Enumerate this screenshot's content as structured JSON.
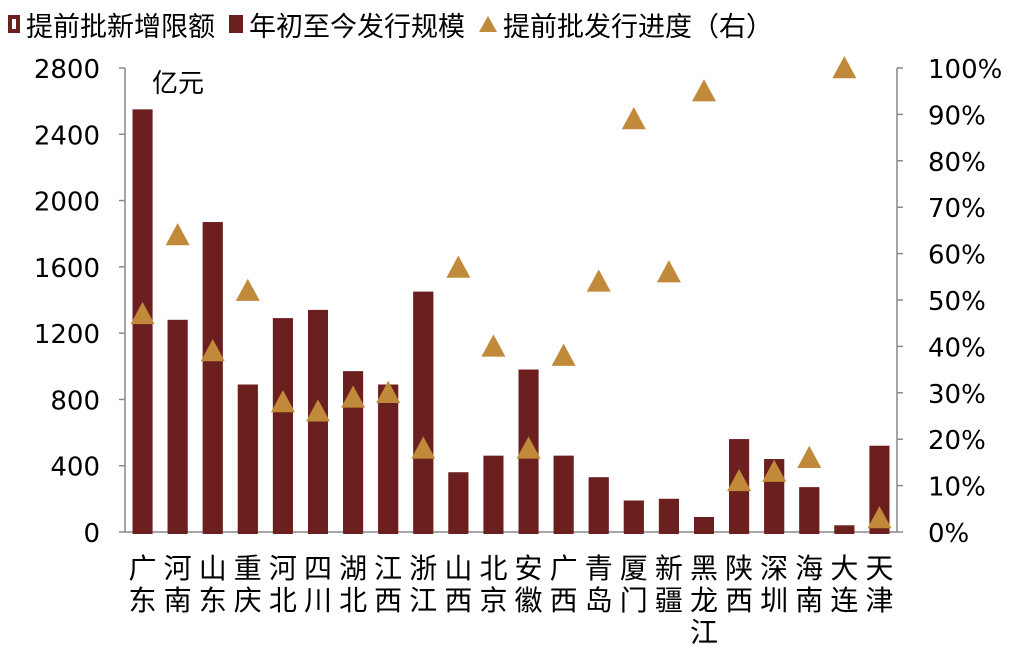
{
  "legend": {
    "quota": "提前批新增限额",
    "issued": "年初至今发行规模",
    "progress": "提前批发行进度（右）"
  },
  "colors": {
    "bar": "#6b1f1f",
    "marker": "#c18a3a"
  },
  "chart_data": {
    "type": "bar",
    "unit_label": "亿元",
    "categories": [
      "广东",
      "河南",
      "山东",
      "重庆",
      "河北",
      "四川",
      "湖北",
      "江西",
      "浙江",
      "山西",
      "北京",
      "安徽",
      "广西",
      "青岛",
      "厦门",
      "新疆",
      "黑龙江",
      "陕西",
      "深圳",
      "海南",
      "大连",
      "天津"
    ],
    "series": [
      {
        "name": "提前批新增限额",
        "kind": "hollow-bar",
        "axis": "left",
        "values": [
          2550,
          1280,
          1870,
          890,
          1290,
          1340,
          970,
          890,
          1450,
          360,
          460,
          980,
          460,
          330,
          190,
          200,
          90,
          560,
          440,
          270,
          40,
          520
        ]
      },
      {
        "name": "年初至今发行规模",
        "kind": "bar",
        "axis": "left",
        "values": [
          2550,
          1280,
          1870,
          890,
          1290,
          1340,
          970,
          890,
          1450,
          360,
          460,
          980,
          460,
          330,
          190,
          200,
          90,
          560,
          440,
          270,
          40,
          520
        ]
      },
      {
        "name": "提前批发行进度（右）",
        "kind": "scatter",
        "axis": "right",
        "values": [
          47,
          64,
          39,
          52,
          28,
          26,
          29,
          30,
          18,
          57,
          40,
          18,
          38,
          54,
          89,
          56,
          95,
          11,
          13,
          16,
          100,
          3
        ]
      }
    ],
    "left_axis": {
      "ylim": [
        0,
        2800
      ],
      "ticks": [
        "0",
        "400",
        "800",
        "1200",
        "1600",
        "2000",
        "2400",
        "2800"
      ]
    },
    "right_axis": {
      "ylim": [
        0,
        100
      ],
      "ticks": [
        "0%",
        "10%",
        "20%",
        "30%",
        "40%",
        "50%",
        "60%",
        "70%",
        "80%",
        "90%",
        "100%"
      ]
    },
    "grid": false,
    "legend_position": "top"
  }
}
